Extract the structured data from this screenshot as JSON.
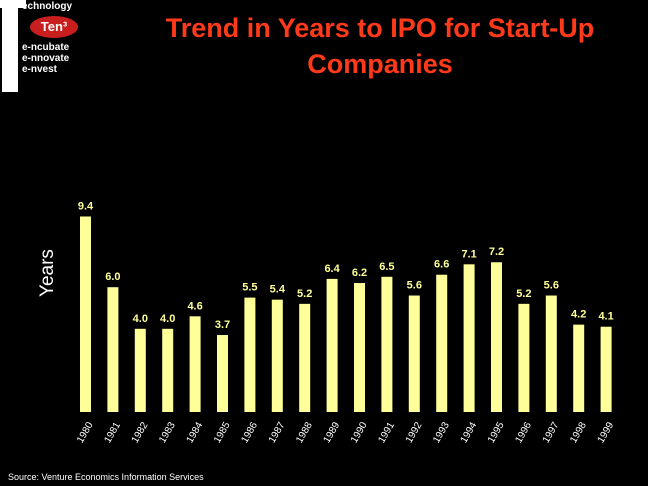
{
  "logo": {
    "letter": "T",
    "line1": "echnology",
    "badge": "Ten³",
    "line2": "e-ncubate",
    "line3": "e-nnovate",
    "line4": "e-nvest"
  },
  "chart_data": {
    "type": "bar",
    "title": "Trend in Years to IPO for Start-Up Companies",
    "xlabel": "",
    "ylabel": "Years",
    "ylim": [
      0,
      10
    ],
    "grid": false,
    "categories": [
      "1980",
      "1981",
      "1982",
      "1983",
      "1984",
      "1985",
      "1986",
      "1987",
      "1988",
      "1989",
      "1990",
      "1991",
      "1992",
      "1993",
      "1994",
      "1995",
      "1996",
      "1997",
      "1998",
      "1999"
    ],
    "values": [
      9.4,
      6.0,
      4.0,
      4.0,
      4.6,
      3.7,
      5.5,
      5.4,
      5.2,
      6.4,
      6.2,
      6.5,
      5.6,
      6.6,
      7.1,
      7.2,
      5.2,
      5.6,
      4.2,
      4.1
    ],
    "value_labels": [
      "9.4",
      "6.0",
      "4.0",
      "4.0",
      "4.6",
      "3.7",
      "5.5",
      "5.4",
      "5.2",
      "6.4",
      "6.2",
      "6.5",
      "5.6",
      "6.6",
      "7.1",
      "7.2",
      "5.2",
      "5.6",
      "4.2",
      "4.1"
    ],
    "colors": {
      "bar": "#ffff99",
      "label": "#ffff99",
      "tick": "#ffffff"
    }
  },
  "source": "Source: Venture Economics Information Services"
}
